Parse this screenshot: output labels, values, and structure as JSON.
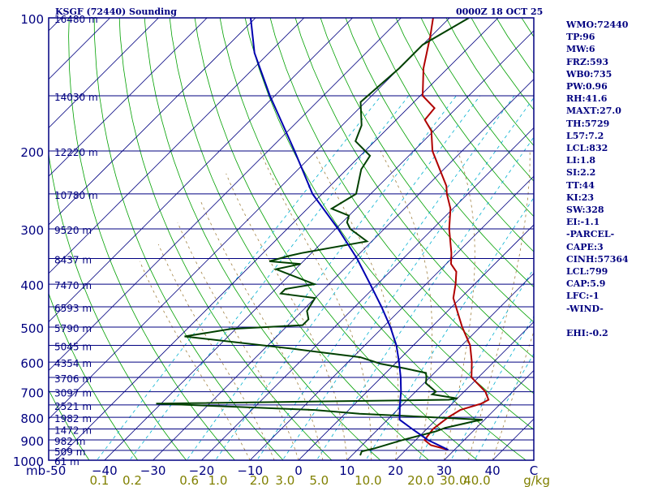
{
  "header": {
    "station": "KSGF (72440) Sounding",
    "timestamp": "0000Z 18 OCT 25"
  },
  "indices": [
    "WMO:72440",
    "TP:96",
    "MW:6",
    "FRZ:593",
    "WB0:735",
    "PW:0.96",
    "RH:41.6",
    "MAXT:27.0",
    "TH:5729",
    "L57:7.2",
    "LCL:832",
    "LI:1.8",
    "SI:2.2",
    "TT:44",
    "KI:23",
    "SW:328",
    "EI:-1.1",
    "-PARCEL-",
    "CAPE:3",
    "CINH:57364",
    "LCL:799",
    "CAP:5.9",
    "LFC:-1",
    "-WIND-",
    "",
    "EHI:-0.2"
  ],
  "colors": {
    "frame": "#000080",
    "isobar": "#000080",
    "isotherm": "#000080",
    "dry_adiabat": "#00a000",
    "mixing_ratio": "#00b0d0",
    "moist_adiabat": "#a08040",
    "temperature": "#b00000",
    "dewpoint": "#004000",
    "parcel": "#0000b0",
    "axis_text": "#000080",
    "mixing_text": "#808000"
  },
  "chart_data": {
    "type": "line",
    "chart_kind": "skew-t log-p sounding",
    "pressure_unit": "mb",
    "pressure_labels": [
      "100",
      "200",
      "300",
      "400",
      "500",
      "600",
      "700",
      "800",
      "900",
      "1000"
    ],
    "pressure_ticks": [
      100,
      200,
      300,
      400,
      500,
      600,
      700,
      800,
      900,
      1000
    ],
    "height_labels": [
      {
        "p": 100,
        "text": "16480 m"
      },
      {
        "p": 150,
        "text": "14030 m"
      },
      {
        "p": 200,
        "text": "12220 m"
      },
      {
        "p": 250,
        "text": "10780 m"
      },
      {
        "p": 300,
        "text": "9520 m"
      },
      {
        "p": 350,
        "text": "8437 m"
      },
      {
        "p": 400,
        "text": "7470 m"
      },
      {
        "p": 450,
        "text": "6593 m"
      },
      {
        "p": 500,
        "text": "5790 m"
      },
      {
        "p": 550,
        "text": "5045 m"
      },
      {
        "p": 600,
        "text": "4354 m"
      },
      {
        "p": 650,
        "text": "3706 m"
      },
      {
        "p": 700,
        "text": "3097 m"
      },
      {
        "p": 750,
        "text": "2521 m"
      },
      {
        "p": 800,
        "text": "1982 m"
      },
      {
        "p": 850,
        "text": "1472 m"
      },
      {
        "p": 900,
        "text": "982 m"
      },
      {
        "p": 950,
        "text": "509 m"
      },
      {
        "p": 1000,
        "text": "61 m"
      }
    ],
    "temp_axis_labels": [
      {
        "t": -50,
        "text": "-50"
      },
      {
        "t": -40,
        "text": "−40"
      },
      {
        "t": -30,
        "text": "−30"
      },
      {
        "t": -20,
        "text": "−20"
      },
      {
        "t": -10,
        "text": "−10"
      },
      {
        "t": 0,
        "text": "0"
      },
      {
        "t": 10,
        "text": "10"
      },
      {
        "t": 20,
        "text": "20"
      },
      {
        "t": 30,
        "text": "30"
      },
      {
        "t": 40,
        "text": "40"
      },
      {
        "t": 50,
        "text": "C"
      }
    ],
    "mb_label": "mb",
    "mixing_ratio_labels": [
      "0.1",
      "0.2",
      "0.6",
      "1.0",
      "2.0",
      "3.0",
      "5.0",
      "10.0",
      "20.0",
      "30.0",
      "40.0"
    ],
    "mixing_ratio_unit": "g/kg",
    "temp_range": [
      -50,
      50
    ],
    "pressure_range": [
      100,
      1000
    ],
    "series": [
      {
        "key": "temperature",
        "points": [
          [
            947,
            28.7
          ],
          [
            925,
            24.2
          ],
          [
            900,
            21.8
          ],
          [
            850,
            21.3
          ],
          [
            800,
            22.0
          ],
          [
            770,
            23.0
          ],
          [
            745,
            26.0
          ],
          [
            730,
            26.7
          ],
          [
            700,
            24.4
          ],
          [
            650,
            18.6
          ],
          [
            600,
            15.5
          ],
          [
            550,
            11.7
          ],
          [
            500,
            6.3
          ],
          [
            470,
            3.1
          ],
          [
            430,
            -1.5
          ],
          [
            400,
            -3.9
          ],
          [
            375,
            -6.3
          ],
          [
            360,
            -9.0
          ],
          [
            340,
            -11.2
          ],
          [
            300,
            -16.6
          ],
          [
            270,
            -20.5
          ],
          [
            250,
            -24.3
          ],
          [
            240,
            -26.0
          ],
          [
            200,
            -36.1
          ],
          [
            180,
            -40.5
          ],
          [
            170,
            -44.1
          ],
          [
            160,
            -44.5
          ],
          [
            150,
            -49.5
          ],
          [
            130,
            -55.0
          ],
          [
            110,
            -60.2
          ],
          [
            100,
            -63.4
          ]
        ]
      },
      {
        "key": "dewpoint",
        "points": [
          [
            975,
            11.7
          ],
          [
            955,
            11.2
          ],
          [
            940,
            13.2
          ],
          [
            900,
            17.3
          ],
          [
            860,
            22.4
          ],
          [
            845,
            23.6
          ],
          [
            815,
            28.4
          ],
          [
            810,
            29.6
          ],
          [
            785,
            3.0
          ],
          [
            770,
            -7.0
          ],
          [
            745,
            -41.0
          ],
          [
            730,
            18.5
          ],
          [
            725,
            20.0
          ],
          [
            710,
            14.0
          ],
          [
            700,
            14.2
          ],
          [
            670,
            10.4
          ],
          [
            650,
            9.3
          ],
          [
            635,
            8.3
          ],
          [
            620,
            3.0
          ],
          [
            605,
            -3.0
          ],
          [
            585,
            -8.5
          ],
          [
            560,
            -24.0
          ],
          [
            525,
            -49.0
          ],
          [
            505,
            -41.0
          ],
          [
            495,
            -27.0
          ],
          [
            480,
            -27.0
          ],
          [
            460,
            -29.0
          ],
          [
            430,
            -30.0
          ],
          [
            420,
            -38.0
          ],
          [
            410,
            -38.0
          ],
          [
            400,
            -33.0
          ],
          [
            370,
            -44.0
          ],
          [
            360,
            -40.0
          ],
          [
            355,
            -47.0
          ],
          [
            345,
            -44.0
          ],
          [
            340,
            -42.0
          ],
          [
            320,
            -31.0
          ],
          [
            300,
            -37.0
          ],
          [
            290,
            -39.0
          ],
          [
            280,
            -40.0
          ],
          [
            270,
            -45.0
          ],
          [
            250,
            -43.0
          ],
          [
            220,
            -47.0
          ],
          [
            205,
            -48.0
          ],
          [
            190,
            -54.0
          ],
          [
            175,
            -56.0
          ],
          [
            155,
            -61.0
          ],
          [
            130,
            -60.0
          ],
          [
            115,
            -60.0
          ],
          [
            100,
            -56.0
          ]
        ]
      },
      {
        "key": "parcel",
        "points": [
          [
            947,
            28.7
          ],
          [
            900,
            22.5
          ],
          [
            850,
            17.0
          ],
          [
            810,
            12.5
          ],
          [
            800,
            12.0
          ],
          [
            750,
            9.5
          ],
          [
            700,
            7.0
          ],
          [
            650,
            4.0
          ],
          [
            600,
            0.5
          ],
          [
            550,
            -3.5
          ],
          [
            500,
            -8.5
          ],
          [
            450,
            -14.5
          ],
          [
            400,
            -21.5
          ],
          [
            350,
            -29.5
          ],
          [
            300,
            -39.5
          ],
          [
            250,
            -52.0
          ],
          [
            200,
            -64.5
          ],
          [
            150,
            -81.0
          ],
          [
            120,
            -93.0
          ],
          [
            100,
            -101.0
          ]
        ]
      }
    ]
  }
}
